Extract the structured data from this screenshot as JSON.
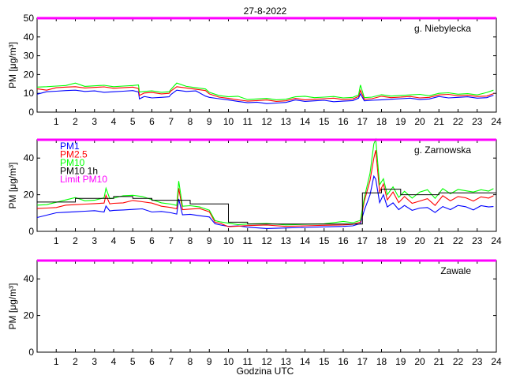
{
  "figure": {
    "title": "27-8-2022",
    "xlabel": "Godzina UTC"
  },
  "colors": {
    "pm1": "#0000ff",
    "pm25": "#ff0000",
    "pm10": "#00ff00",
    "pm10_1h": "#000000",
    "limit": "#ff00ff"
  },
  "chart_data": [
    {
      "type": "line",
      "station": "g. Niebylecka",
      "ylabel": "PM [μg/m³]",
      "ylim": [
        0,
        50
      ],
      "yticks": [
        0,
        10,
        20,
        30,
        40,
        50
      ],
      "xlim": [
        0,
        24
      ],
      "xticks": [
        1,
        2,
        3,
        4,
        5,
        6,
        7,
        8,
        9,
        10,
        11,
        12,
        13,
        14,
        15,
        16,
        17,
        18,
        19,
        20,
        21,
        22,
        23,
        24
      ],
      "limit_pm10": 50,
      "legend": [],
      "series": [
        {
          "key": "pm1",
          "color": "#0000ff",
          "x": [
            0,
            0.5,
            1,
            1.5,
            2,
            2.5,
            3,
            3.5,
            4,
            4.5,
            5,
            5.3,
            5.35,
            5.6,
            6,
            6.5,
            6.9,
            7,
            7.3,
            7.8,
            8.3,
            8.8,
            9,
            9.5,
            10,
            10.5,
            11,
            11.5,
            12,
            12.5,
            13,
            13.5,
            14,
            14.5,
            15,
            15.5,
            16,
            16.5,
            16.8,
            16.9,
            17.1,
            17.5,
            18,
            18.5,
            19,
            19.5,
            20,
            20.5,
            21,
            21.5,
            22,
            22.5,
            23,
            23.5,
            23.85
          ],
          "y": [
            10,
            11,
            11,
            11,
            12,
            11,
            11,
            11,
            11,
            11,
            11,
            11,
            7,
            8,
            8,
            8,
            8,
            9,
            12,
            11,
            11,
            9,
            8,
            7,
            6,
            6,
            5,
            5,
            5,
            5,
            5,
            6,
            6,
            6,
            6,
            6,
            6,
            6,
            7,
            10,
            6,
            6,
            7,
            7,
            7,
            7,
            7,
            7,
            8,
            8,
            8,
            8,
            7,
            8,
            9
          ]
        },
        {
          "key": "pm25",
          "color": "#ff0000",
          "x": [
            0,
            0.5,
            1,
            1.5,
            2,
            2.5,
            3,
            3.5,
            4,
            4.5,
            5,
            5.3,
            5.35,
            5.6,
            6,
            6.5,
            6.9,
            7,
            7.3,
            7.8,
            8.3,
            8.8,
            9,
            9.5,
            10,
            10.5,
            11,
            11.5,
            12,
            12.5,
            13,
            13.5,
            14,
            14.5,
            15,
            15.5,
            16,
            16.5,
            16.8,
            16.9,
            17.1,
            17.5,
            18,
            18.5,
            19,
            19.5,
            20,
            20.5,
            21,
            21.5,
            22,
            22.5,
            23,
            23.5,
            23.85
          ],
          "y": [
            12,
            12,
            13,
            13,
            14,
            13,
            13,
            13,
            13,
            13,
            13,
            13,
            9,
            10,
            10,
            10,
            10,
            11,
            14,
            13,
            12,
            11,
            10,
            8,
            7,
            7,
            6,
            6,
            6,
            6,
            6,
            7,
            7,
            7,
            7,
            7,
            7,
            7,
            8,
            12,
            7,
            7,
            8,
            8,
            8,
            8,
            8,
            8,
            9,
            9,
            9,
            9,
            8,
            9,
            10
          ]
        },
        {
          "key": "pm10",
          "color": "#00ff00",
          "x": [
            0,
            0.5,
            1,
            1.5,
            2,
            2.5,
            3,
            3.5,
            4,
            4.5,
            5,
            5.3,
            5.35,
            5.6,
            6,
            6.5,
            6.9,
            7,
            7.3,
            7.8,
            8.3,
            8.8,
            9,
            9.5,
            10,
            10.5,
            11,
            11.5,
            12,
            12.5,
            13,
            13.5,
            14,
            14.5,
            15,
            15.5,
            16,
            16.5,
            16.8,
            16.9,
            17.1,
            17.5,
            18,
            18.5,
            19,
            19.5,
            20,
            20.5,
            21,
            21.5,
            22,
            22.5,
            23,
            23.5,
            23.85
          ],
          "y": [
            13,
            14,
            14,
            14,
            15,
            14,
            14,
            14,
            14,
            14,
            14,
            14,
            11,
            11,
            11,
            11,
            11,
            12,
            15,
            14,
            13,
            12,
            11,
            9,
            8,
            8,
            7,
            7,
            7,
            7,
            7,
            8,
            8,
            8,
            8,
            8,
            8,
            8,
            9,
            14,
            8,
            8,
            9,
            9,
            9,
            9,
            9,
            9,
            10,
            10,
            10,
            10,
            9,
            10,
            12
          ]
        }
      ]
    },
    {
      "type": "line",
      "station": "g. Zarnowska",
      "ylabel": "PM [μg/m³]",
      "ylim": [
        0,
        50
      ],
      "yticks": [
        0,
        20,
        40
      ],
      "xlim": [
        0,
        24
      ],
      "xticks": [
        1,
        2,
        3,
        4,
        5,
        6,
        7,
        8,
        9,
        10,
        11,
        12,
        13,
        14,
        15,
        16,
        17,
        18,
        19,
        20,
        21,
        22,
        23,
        24
      ],
      "limit_pm10": 50,
      "legend": [
        "PM1",
        "PM2.5",
        "PM10",
        "PM10 1h",
        "Limit PM10"
      ],
      "series": [
        {
          "key": "pm1",
          "color": "#0000ff",
          "x": [
            0,
            0.5,
            1,
            1.5,
            2,
            2.5,
            3,
            3.5,
            3.6,
            3.8,
            4,
            4.5,
            5,
            5.5,
            6,
            6.5,
            7,
            7.3,
            7.4,
            7.6,
            8,
            8.5,
            9,
            9.3,
            9.6,
            10,
            10.5,
            11,
            12,
            13,
            14,
            15,
            16,
            16.5,
            16.9,
            17.1,
            17.4,
            17.6,
            17.7,
            17.9,
            18.1,
            18.3,
            18.6,
            18.9,
            19.2,
            19.6,
            20,
            20.4,
            20.8,
            21.2,
            21.6,
            22,
            22.4,
            22.8,
            23.2,
            23.6,
            23.85
          ],
          "y": [
            8,
            9,
            10,
            10,
            11,
            11,
            11,
            11,
            14,
            11,
            11,
            12,
            12,
            12,
            11,
            11,
            10,
            9,
            18,
            9,
            9,
            9,
            8,
            4,
            3,
            3,
            3,
            2,
            2,
            2,
            2,
            2,
            3,
            3,
            4,
            12,
            20,
            30,
            28,
            16,
            20,
            13,
            16,
            12,
            14,
            11,
            13,
            13,
            10,
            14,
            12,
            14,
            13,
            12,
            14,
            13,
            14
          ]
        },
        {
          "key": "pm25",
          "color": "#ff0000",
          "x": [
            0,
            0.5,
            1,
            1.5,
            2,
            2.5,
            3,
            3.5,
            3.6,
            3.8,
            4,
            4.5,
            5,
            5.5,
            6,
            6.5,
            7,
            7.3,
            7.4,
            7.6,
            8,
            8.5,
            9,
            9.3,
            9.6,
            10,
            10.5,
            11,
            12,
            13,
            14,
            15,
            16,
            16.5,
            16.9,
            17.1,
            17.4,
            17.6,
            17.7,
            17.9,
            18.1,
            18.3,
            18.6,
            18.9,
            19.2,
            19.6,
            20,
            20.4,
            20.8,
            21.2,
            21.6,
            22,
            22.4,
            22.8,
            23.2,
            23.6,
            23.85
          ],
          "y": [
            12,
            13,
            13,
            14,
            15,
            15,
            15,
            15,
            20,
            15,
            15,
            16,
            17,
            16,
            15,
            14,
            13,
            12,
            24,
            12,
            12,
            12,
            11,
            5,
            4,
            3,
            3,
            3,
            3,
            3,
            3,
            3,
            4,
            4,
            5,
            16,
            28,
            40,
            44,
            22,
            26,
            17,
            21,
            16,
            19,
            15,
            17,
            18,
            14,
            19,
            17,
            19,
            18,
            17,
            19,
            18,
            19
          ]
        },
        {
          "key": "pm10",
          "color": "#00ff00",
          "x": [
            0,
            0.5,
            1,
            1.5,
            2,
            2.5,
            3,
            3.5,
            3.6,
            3.8,
            4,
            4.5,
            5,
            5.5,
            6,
            6.5,
            7,
            7.3,
            7.4,
            7.6,
            8,
            8.5,
            9,
            9.3,
            9.6,
            10,
            10.5,
            11,
            12,
            13,
            14,
            15,
            16,
            16.5,
            16.9,
            17.1,
            17.4,
            17.6,
            17.7,
            17.9,
            18.1,
            18.3,
            18.6,
            18.9,
            19.2,
            19.6,
            20,
            20.4,
            20.8,
            21.2,
            21.6,
            22,
            22.4,
            22.8,
            23.2,
            23.6,
            23.85
          ],
          "y": [
            14,
            15,
            16,
            17,
            18,
            17,
            17,
            18,
            24,
            18,
            18,
            19,
            20,
            19,
            17,
            16,
            15,
            14,
            27,
            14,
            14,
            13,
            12,
            6,
            5,
            4,
            4,
            4,
            4,
            4,
            4,
            4,
            5,
            5,
            6,
            18,
            32,
            48,
            50,
            25,
            29,
            20,
            24,
            19,
            22,
            18,
            21,
            23,
            18,
            23,
            21,
            23,
            22,
            21,
            23,
            22,
            23
          ]
        },
        {
          "key": "pm10_1h",
          "color": "#000000",
          "step": true,
          "x": [
            0,
            1,
            2,
            3,
            4,
            5,
            6,
            7,
            8,
            9,
            10,
            11,
            12,
            13,
            14,
            15,
            16,
            17,
            18,
            19,
            20,
            21,
            22,
            23,
            24
          ],
          "y": [
            16,
            16,
            18,
            18,
            19,
            18,
            17,
            17,
            15,
            15,
            5,
            4,
            4,
            4,
            4,
            4,
            4,
            21,
            23,
            20,
            20,
            21,
            21,
            21,
            21
          ]
        }
      ]
    },
    {
      "type": "line",
      "station": "Zawale",
      "ylabel": "PM [μg/m³]",
      "ylim": [
        0,
        50
      ],
      "yticks": [
        0,
        20,
        40
      ],
      "xlim": [
        0,
        24
      ],
      "xticks": [
        1,
        2,
        3,
        4,
        5,
        6,
        7,
        8,
        9,
        10,
        11,
        12,
        13,
        14,
        15,
        16,
        17,
        18,
        19,
        20,
        21,
        22,
        23,
        24
      ],
      "limit_pm10": 50,
      "legend": [],
      "series": []
    }
  ]
}
